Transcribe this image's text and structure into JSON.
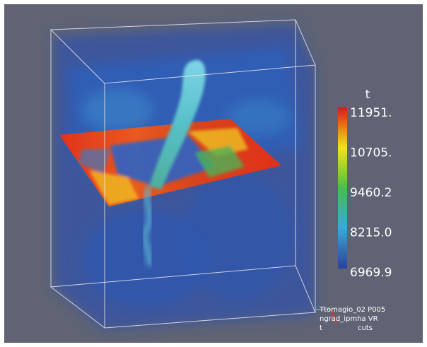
{
  "colorbar": {
    "title": "t",
    "labels": [
      "11951.",
      "10705.",
      "9460.2",
      "8215.0",
      "6969.9"
    ]
  },
  "info": {
    "lines": [
      "Ttomagio_02 P005",
      "ngrad_ipmha VR",
      "cuts"
    ],
    "axis_label": "t"
  }
}
